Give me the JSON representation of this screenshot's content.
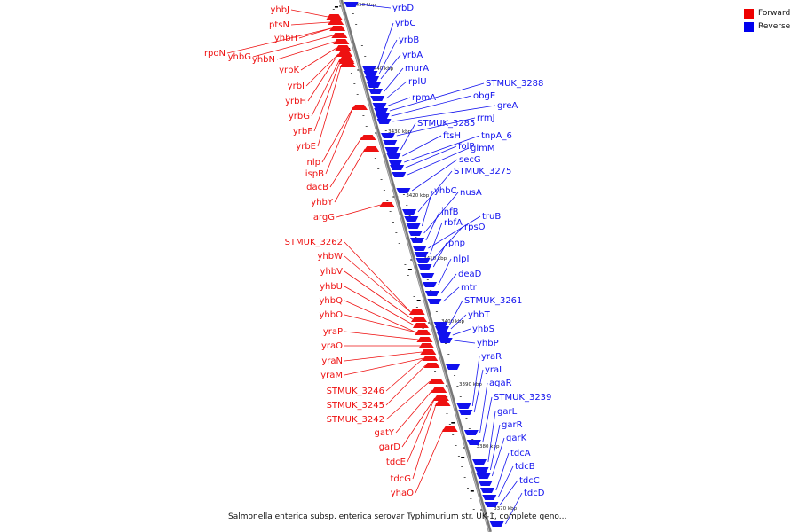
{
  "caption": "Salmonella enterica subsp. enterica serovar Typhimurium str. UK-1, complete geno...",
  "legend": [
    {
      "label": "Forward",
      "color": "#ee0000"
    },
    {
      "label": "Reverse",
      "color": "#0000ee"
    }
  ],
  "colors": {
    "forward": "#ee1111",
    "reverse": "#1111ee",
    "backbone": "#888888"
  },
  "ticks": [
    "3450 kbp",
    "3440 kbp",
    "3430 kbp",
    "3420 kbp",
    "3410 kbp",
    "3400 kbp",
    "3390 kbp",
    "3380 kbp",
    "3370 kbp"
  ],
  "forward_genes": [
    "yhbJ",
    "ptsN",
    "yhbH",
    "rpoN",
    "yhbG",
    "yhbN",
    "yrbK",
    "yrbI",
    "yrbH",
    "yrbG",
    "yrbF",
    "yrbE",
    "nlp",
    "ispB",
    "dacB",
    "yhbY",
    "argG",
    "STMUK_3262",
    "yhbW",
    "yhbV",
    "yhbU",
    "yhbQ",
    "yhbO",
    "yraP",
    "yraO",
    "yraN",
    "yraM",
    "STMUK_3246",
    "STMUK_3245",
    "STMUK_3242",
    "gatY",
    "garD",
    "tdcE",
    "tdcG",
    "yhaO"
  ],
  "reverse_genes": [
    "yrbD",
    "yrbC",
    "yrbB",
    "yrbA",
    "murA",
    "rplU",
    "rpmA",
    "STMUK_3288",
    "obgE",
    "greA",
    "rrmJ",
    "STMUK_3285",
    "ftsH",
    "tnpA_6",
    "folP",
    "glmM",
    "secG",
    "STMUK_3275",
    "yhbC",
    "nusA",
    "infB",
    "truB",
    "rbfA",
    "rpsO",
    "pnp",
    "nlpI",
    "deaD",
    "mtr",
    "STMUK_3261",
    "yhbT",
    "yhbS",
    "yhbP",
    "yraR",
    "yraL",
    "agaR",
    "STMUK_3239",
    "garL",
    "garR",
    "garK",
    "tdcA",
    "tdcB",
    "tdcC",
    "tdcD"
  ]
}
